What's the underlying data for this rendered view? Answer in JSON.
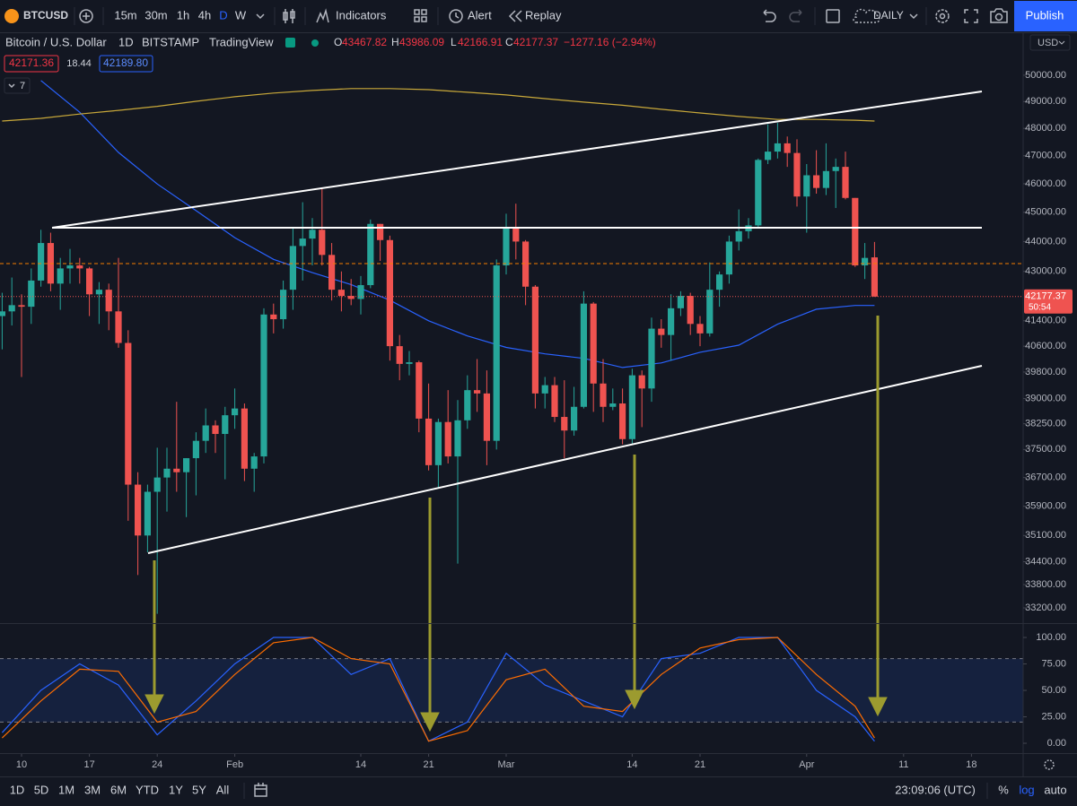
{
  "toolbar": {
    "symbol": "BTCUSD",
    "intervals": [
      "15m",
      "30m",
      "1h",
      "4h",
      "D",
      "W"
    ],
    "indicators": "Indicators",
    "alert": "Alert",
    "replay": "Replay",
    "layout": "DAILY",
    "publish": "Publish"
  },
  "legend": {
    "name": "Bitcoin / U.S. Dollar",
    "interval": "1D",
    "exchange": "BITSTAMP",
    "source": "TradingView",
    "open_label": "O",
    "open": "43467.82",
    "high_label": "H",
    "high": "43986.09",
    "low_label": "L",
    "low": "42166.91",
    "close_label": "C",
    "close": "42177.37",
    "change": "−1277.16 (−2.94%)",
    "chips": [
      "42171.36",
      "18.44",
      "42189.80"
    ],
    "indicator_count": "7"
  },
  "price_axis": {
    "currency": "USD",
    "last_price_label": "42177.37",
    "countdown": "50:54"
  },
  "bottom_bar": {
    "ranges": [
      "1D",
      "5D",
      "1M",
      "3M",
      "6M",
      "YTD",
      "1Y",
      "5Y",
      "All"
    ],
    "clock": "23:09:06 (UTC)",
    "percent": "%",
    "log": "log",
    "auto": "auto"
  },
  "chart_data": [
    {
      "type": "candlestick",
      "log": true,
      "up_color": "#26a69a",
      "down_color": "#ef5350",
      "ylim": [
        32814,
        51680
      ],
      "yticks": [
        {
          "value": 50000,
          "label": "50000.00"
        },
        {
          "value": 49000,
          "label": "49000.00"
        },
        {
          "value": 48000,
          "label": "48000.00"
        },
        {
          "value": 47000,
          "label": "47000.00"
        },
        {
          "value": 46000,
          "label": "46000.00"
        },
        {
          "value": 45000,
          "label": "45000.00"
        },
        {
          "value": 44000,
          "label": "44000.00"
        },
        {
          "value": 43000,
          "label": "43000.00"
        },
        {
          "value": 41400,
          "label": "41400.00"
        },
        {
          "value": 40600,
          "label": "40600.00"
        },
        {
          "value": 39800,
          "label": "39800.00"
        },
        {
          "value": 39000,
          "label": "39000.00"
        },
        {
          "value": 38250,
          "label": "38250.00"
        },
        {
          "value": 37500,
          "label": "37500.00"
        },
        {
          "value": 36700,
          "label": "36700.00"
        },
        {
          "value": 35900,
          "label": "35900.00"
        },
        {
          "value": 35100,
          "label": "35100.00"
        },
        {
          "value": 34400,
          "label": "34400.00"
        },
        {
          "value": 33800,
          "label": "33800.00"
        },
        {
          "value": 33200,
          "label": "33200.00"
        }
      ],
      "xticks": [
        {
          "value": "01-10",
          "label": "10"
        },
        {
          "value": "01-17",
          "label": "17"
        },
        {
          "value": "01-24",
          "label": "24"
        },
        {
          "value": "02-01",
          "label": "Feb"
        },
        {
          "value": "02-14",
          "label": "14"
        },
        {
          "value": "02-21",
          "label": "21"
        },
        {
          "value": "03-01",
          "label": "Mar"
        },
        {
          "value": "03-14",
          "label": "14"
        },
        {
          "value": "03-21",
          "label": "21"
        },
        {
          "value": "04-01",
          "label": "Apr"
        },
        {
          "value": "04-11",
          "label": "11"
        },
        {
          "value": "04-18",
          "label": "18"
        }
      ],
      "x": [
        "01-08",
        "01-09",
        "01-10",
        "01-11",
        "01-12",
        "01-13",
        "01-14",
        "01-15",
        "01-16",
        "01-17",
        "01-18",
        "01-19",
        "01-20",
        "01-21",
        "01-22",
        "01-23",
        "01-24",
        "01-25",
        "01-26",
        "01-27",
        "01-28",
        "01-29",
        "01-30",
        "01-31",
        "02-01",
        "02-02",
        "02-03",
        "02-04",
        "02-05",
        "02-06",
        "02-07",
        "02-08",
        "02-09",
        "02-10",
        "02-11",
        "02-12",
        "02-13",
        "02-14",
        "02-15",
        "02-16",
        "02-17",
        "02-18",
        "02-19",
        "02-20",
        "02-21",
        "02-22",
        "02-23",
        "02-24",
        "02-25",
        "02-26",
        "02-27",
        "02-28",
        "03-01",
        "03-02",
        "03-03",
        "03-04",
        "03-05",
        "03-06",
        "03-07",
        "03-08",
        "03-09",
        "03-10",
        "03-11",
        "03-12",
        "03-13",
        "03-14",
        "03-15",
        "03-16",
        "03-17",
        "03-18",
        "03-19",
        "03-20",
        "03-21",
        "03-22",
        "03-23",
        "03-24",
        "03-25",
        "03-26",
        "03-27",
        "03-28",
        "03-29",
        "03-30",
        "03-31",
        "04-01",
        "04-02",
        "04-03",
        "04-04",
        "04-05",
        "04-06",
        "04-07",
        "04-08"
      ],
      "ohlc": [
        [
          41550,
          42300,
          40500,
          41700
        ],
        [
          41700,
          42800,
          41250,
          41900
        ],
        [
          41900,
          42250,
          39650,
          41850
        ],
        [
          41850,
          43100,
          41300,
          42700
        ],
        [
          42700,
          44400,
          42500,
          43950
        ],
        [
          43950,
          44300,
          42350,
          42600
        ],
        [
          42600,
          43450,
          41750,
          43100
        ],
        [
          43100,
          43750,
          42600,
          43200
        ],
        [
          43200,
          43450,
          42600,
          43100
        ],
        [
          43100,
          43150,
          41550,
          42250
        ],
        [
          42250,
          42650,
          41300,
          42400
        ],
        [
          42400,
          42600,
          41100,
          41700
        ],
        [
          41700,
          43450,
          40550,
          40700
        ],
        [
          40700,
          41100,
          35500,
          36500
        ],
        [
          36500,
          36850,
          34050,
          35100
        ],
        [
          35100,
          36500,
          34650,
          36300
        ],
        [
          36300,
          37550,
          33050,
          36700
        ],
        [
          36700,
          37550,
          35750,
          36950
        ],
        [
          36950,
          38900,
          36300,
          36850
        ],
        [
          36850,
          37250,
          35600,
          37250
        ],
        [
          37250,
          38000,
          36200,
          37750
        ],
        [
          37750,
          38700,
          37400,
          38200
        ],
        [
          38200,
          38350,
          37400,
          37950
        ],
        [
          37950,
          38750,
          36650,
          38500
        ],
        [
          38500,
          39300,
          38100,
          38700
        ],
        [
          38700,
          38850,
          36600,
          36950
        ],
        [
          36950,
          37400,
          36300,
          37300
        ],
        [
          37300,
          41800,
          37100,
          41600
        ],
        [
          41600,
          41950,
          41000,
          41450
        ],
        [
          41450,
          42700,
          41150,
          42400
        ],
        [
          42400,
          44500,
          41750,
          43850
        ],
        [
          43850,
          45350,
          42700,
          44100
        ],
        [
          44100,
          44800,
          43200,
          44400
        ],
        [
          44400,
          45850,
          43200,
          43550
        ],
        [
          43550,
          43950,
          42050,
          42400
        ],
        [
          42400,
          43000,
          41700,
          42200
        ],
        [
          42200,
          42750,
          41900,
          42100
        ],
        [
          42100,
          42850,
          41600,
          42550
        ],
        [
          42550,
          44750,
          42450,
          44600
        ],
        [
          44600,
          44600,
          43350,
          44050
        ],
        [
          44050,
          44200,
          40150,
          40600
        ],
        [
          40600,
          40950,
          39550,
          40050
        ],
        [
          40050,
          40450,
          39700,
          40100
        ],
        [
          40100,
          40150,
          38000,
          38400
        ],
        [
          38400,
          39450,
          36900,
          37050
        ],
        [
          37050,
          38400,
          36400,
          38300
        ],
        [
          38300,
          39250,
          37100,
          37300
        ],
        [
          37300,
          38950,
          34350,
          38350
        ],
        [
          38350,
          39700,
          38100,
          39250
        ],
        [
          39250,
          40200,
          38600,
          39150
        ],
        [
          39150,
          39850,
          37050,
          37750
        ],
        [
          37750,
          43400,
          37500,
          43200
        ],
        [
          43200,
          44950,
          42900,
          44450
        ],
        [
          44450,
          45300,
          43400,
          44000
        ],
        [
          44000,
          44050,
          41900,
          42500
        ],
        [
          42500,
          42550,
          38700,
          39150
        ],
        [
          39150,
          39650,
          38700,
          39400
        ],
        [
          39400,
          39650,
          38300,
          38450
        ],
        [
          38450,
          39550,
          37250,
          38050
        ],
        [
          38050,
          39350,
          37900,
          38750
        ],
        [
          38750,
          42350,
          38700,
          41950
        ],
        [
          41950,
          42000,
          38600,
          39450
        ],
        [
          39450,
          40200,
          38300,
          38750
        ],
        [
          38750,
          39300,
          38650,
          38850
        ],
        [
          38850,
          39300,
          37650,
          37800
        ],
        [
          37800,
          39900,
          37650,
          39700
        ],
        [
          39700,
          39850,
          38150,
          39300
        ],
        [
          39300,
          41500,
          38900,
          41150
        ],
        [
          41150,
          41450,
          40550,
          40950
        ],
        [
          40950,
          42250,
          40150,
          41800
        ],
        [
          41800,
          42350,
          41550,
          42200
        ],
        [
          42200,
          42300,
          40950,
          41300
        ],
        [
          41300,
          41550,
          40600,
          41000
        ],
        [
          41000,
          43300,
          40900,
          42400
        ],
        [
          42400,
          43000,
          41850,
          42900
        ],
        [
          42900,
          44200,
          42600,
          44000
        ],
        [
          44000,
          45100,
          43700,
          44350
        ],
        [
          44350,
          44800,
          44100,
          44550
        ],
        [
          44550,
          46900,
          44450,
          46850
        ],
        [
          46850,
          48150,
          46700,
          47150
        ],
        [
          47150,
          48200,
          46900,
          47450
        ],
        [
          47450,
          47700,
          46600,
          47100
        ],
        [
          47100,
          47600,
          45200,
          45550
        ],
        [
          45550,
          46700,
          44300,
          46300
        ],
        [
          46300,
          47200,
          45650,
          45850
        ],
        [
          45850,
          47450,
          45600,
          46450
        ],
        [
          46450,
          46900,
          45150,
          46600
        ],
        [
          46600,
          47150,
          45450,
          45500
        ],
        [
          45500,
          45500,
          43150,
          43200
        ],
        [
          43200,
          43950,
          42750,
          43450
        ],
        [
          43467.82,
          43986.09,
          42166.91,
          42177.37
        ]
      ],
      "overlay_x": [
        "01-08",
        "01-12",
        "01-16",
        "01-20",
        "01-24",
        "01-28",
        "02-01",
        "02-05",
        "02-09",
        "02-13",
        "02-17",
        "02-21",
        "02-25",
        "03-01",
        "03-05",
        "03-09",
        "03-13",
        "03-17",
        "03-21",
        "03-25",
        "03-29",
        "04-02",
        "04-06",
        "04-08"
      ],
      "overlays": [
        {
          "color": "#2962ff",
          "values": [
            null,
            49800,
            48600,
            47120,
            45990,
            45060,
            44130,
            43400,
            42960,
            42570,
            42060,
            41400,
            40920,
            40560,
            40360,
            40220,
            39940,
            40080,
            40410,
            40630,
            41290,
            41770,
            41890,
            41890
          ]
        },
        {
          "color": "#c9a93a",
          "values": [
            48270,
            48370,
            48530,
            48670,
            48820,
            49010,
            49180,
            49320,
            49420,
            49490,
            49490,
            49450,
            49350,
            49250,
            49110,
            48980,
            48860,
            48710,
            48570,
            48440,
            48330,
            48330,
            48300,
            48270
          ]
        }
      ]
    },
    {
      "type": "line",
      "ylim": [
        -9.3,
        113.6
      ],
      "yticks": [
        {
          "value": 100,
          "label": "100.00"
        },
        {
          "value": 75,
          "label": "75.00"
        },
        {
          "value": 50,
          "label": "50.00"
        },
        {
          "value": 25,
          "label": "25.00"
        },
        {
          "value": 0,
          "label": "0.00"
        }
      ],
      "band": [
        20,
        80
      ],
      "band_color": "#2962ff",
      "x": [
        "01-08",
        "01-12",
        "01-16",
        "01-20",
        "01-24",
        "01-28",
        "02-01",
        "02-05",
        "02-09",
        "02-13",
        "02-17",
        "02-21",
        "02-25",
        "03-01",
        "03-05",
        "03-09",
        "03-13",
        "03-17",
        "03-21",
        "03-25",
        "03-29",
        "04-02",
        "04-06",
        "04-08"
      ],
      "series": [
        {
          "color": "#2962ff",
          "values": [
            10,
            50,
            75,
            55,
            8,
            40,
            75,
            100,
            100,
            65,
            80,
            2,
            20,
            85,
            55,
            40,
            25,
            80,
            85,
            100,
            100,
            50,
            25,
            2
          ]
        },
        {
          "color": "#ff6d00",
          "values": [
            5,
            40,
            70,
            68,
            20,
            30,
            65,
            95,
            100,
            80,
            75,
            2,
            12,
            60,
            70,
            35,
            30,
            65,
            90,
            98,
            100,
            65,
            35,
            5
          ]
        }
      ]
    }
  ]
}
